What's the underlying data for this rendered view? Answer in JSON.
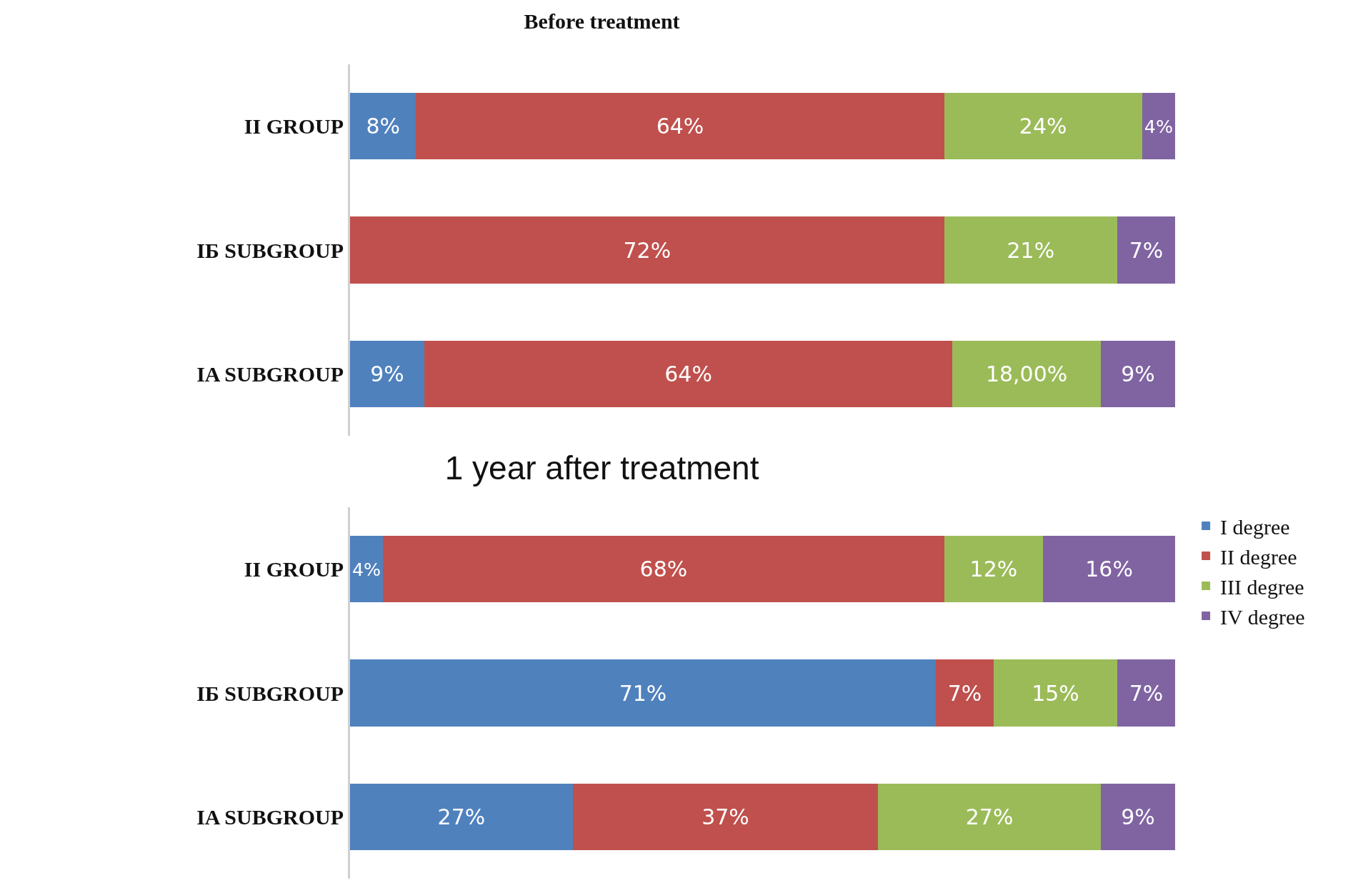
{
  "chart_data": [
    {
      "type": "bar",
      "orientation": "horizontal",
      "stacked": true,
      "title": "Before treatment",
      "categories": [
        "II GROUP",
        "IБ SUBGROUP",
        "IA SUBGROUP"
      ],
      "xlim": [
        0,
        100
      ],
      "tick_labels": "y",
      "legend": false,
      "series": [
        {
          "color": "#4f81bd",
          "values": [
            8,
            null,
            9
          ],
          "value_labels": [
            "8%",
            null,
            "9%"
          ]
        },
        {
          "color": "#c0504d",
          "values": [
            64,
            72,
            64
          ],
          "value_labels": [
            "64%",
            "72%",
            "64%"
          ]
        },
        {
          "color": "#9bbb59",
          "values": [
            24,
            21,
            18
          ],
          "value_labels": [
            "24%",
            "21%",
            "18,00%"
          ]
        },
        {
          "color": "#8064a2",
          "values": [
            4,
            7,
            9
          ],
          "value_labels": [
            "4%",
            "7%",
            "9%"
          ]
        }
      ]
    },
    {
      "type": "bar",
      "orientation": "horizontal",
      "stacked": true,
      "title": "1 year after treatment",
      "categories": [
        "II GROUP",
        "IБ SUBGROUP",
        "IA SUBGROUP"
      ],
      "xlim": [
        0,
        100
      ],
      "tick_labels": "y",
      "legend": "top right",
      "series": [
        {
          "name": "I degree",
          "color": "#4f81bd",
          "values": [
            4,
            71,
            27
          ],
          "value_labels": [
            "4%",
            "71%",
            "27%"
          ]
        },
        {
          "name": "II degree",
          "color": "#c0504d",
          "values": [
            68,
            7,
            37
          ],
          "value_labels": [
            "68%",
            "7%",
            "37%"
          ]
        },
        {
          "name": "III degree",
          "color": "#9bbb59",
          "values": [
            12,
            15,
            27
          ],
          "value_labels": [
            "12%",
            "15%",
            "27%"
          ]
        },
        {
          "name": "IV degree",
          "color": "#8064a2",
          "values": [
            16,
            7,
            9
          ],
          "value_labels": [
            "16%",
            "7%",
            "9%"
          ]
        }
      ]
    }
  ]
}
